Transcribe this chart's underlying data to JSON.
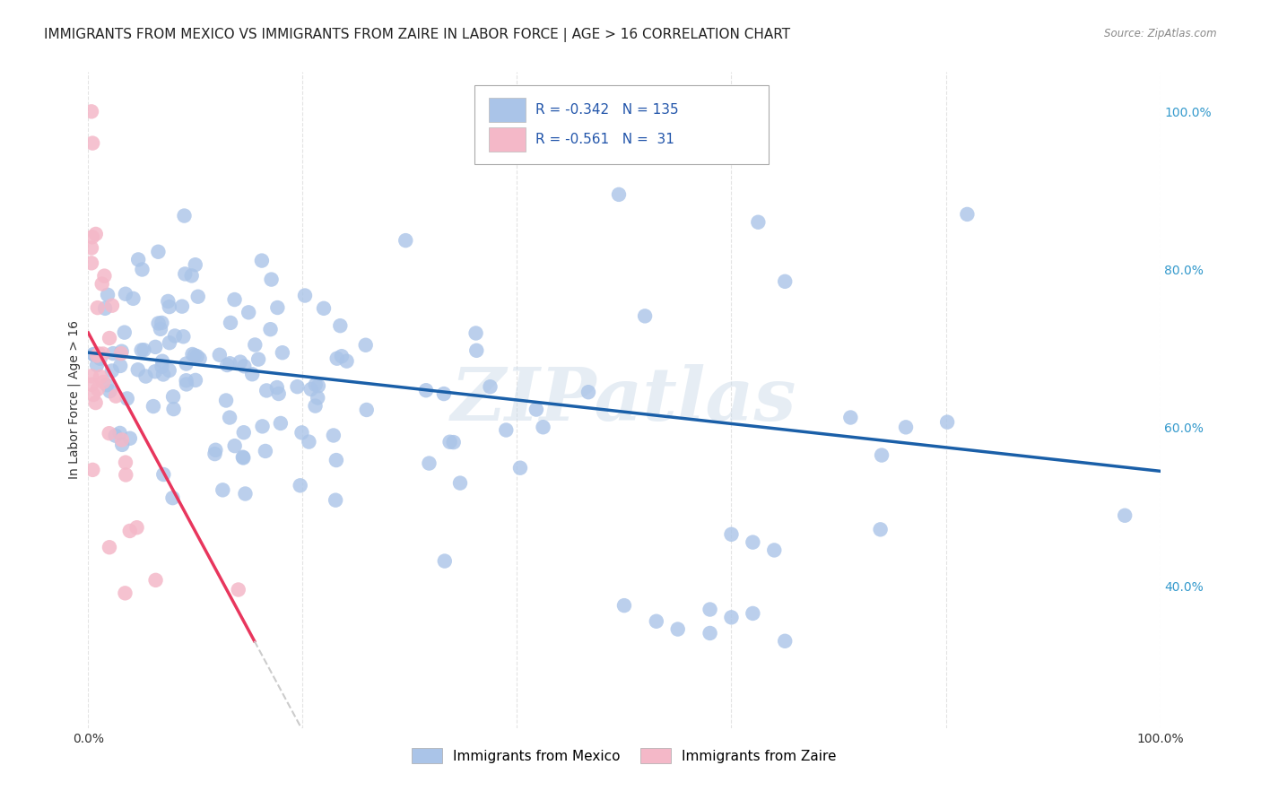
{
  "title": "IMMIGRANTS FROM MEXICO VS IMMIGRANTS FROM ZAIRE IN LABOR FORCE | AGE > 16 CORRELATION CHART",
  "source": "Source: ZipAtlas.com",
  "ylabel": "In Labor Force | Age > 16",
  "xlim": [
    0.0,
    1.0
  ],
  "ylim": [
    0.22,
    1.05
  ],
  "y_tick_positions_right": [
    0.4,
    0.6,
    0.8,
    1.0
  ],
  "mexico_color": "#aac4e8",
  "zaire_color": "#f4b8c8",
  "mexico_line_color": "#1a5fa8",
  "zaire_line_color": "#e8365d",
  "zaire_line_dashed_color": "#cccccc",
  "R_mexico": -0.342,
  "N_mexico": 135,
  "R_zaire": -0.561,
  "N_zaire": 31,
  "legend_label_mexico": "Immigrants from Mexico",
  "legend_label_zaire": "Immigrants from Zaire",
  "background_color": "#ffffff",
  "grid_color": "#dddddd",
  "title_fontsize": 11,
  "axis_label_fontsize": 10,
  "tick_fontsize": 10,
  "legend_fontsize": 11,
  "watermark_text": "ZIPatlas",
  "watermark_color": "#c8d8e8",
  "watermark_alpha": 0.45
}
